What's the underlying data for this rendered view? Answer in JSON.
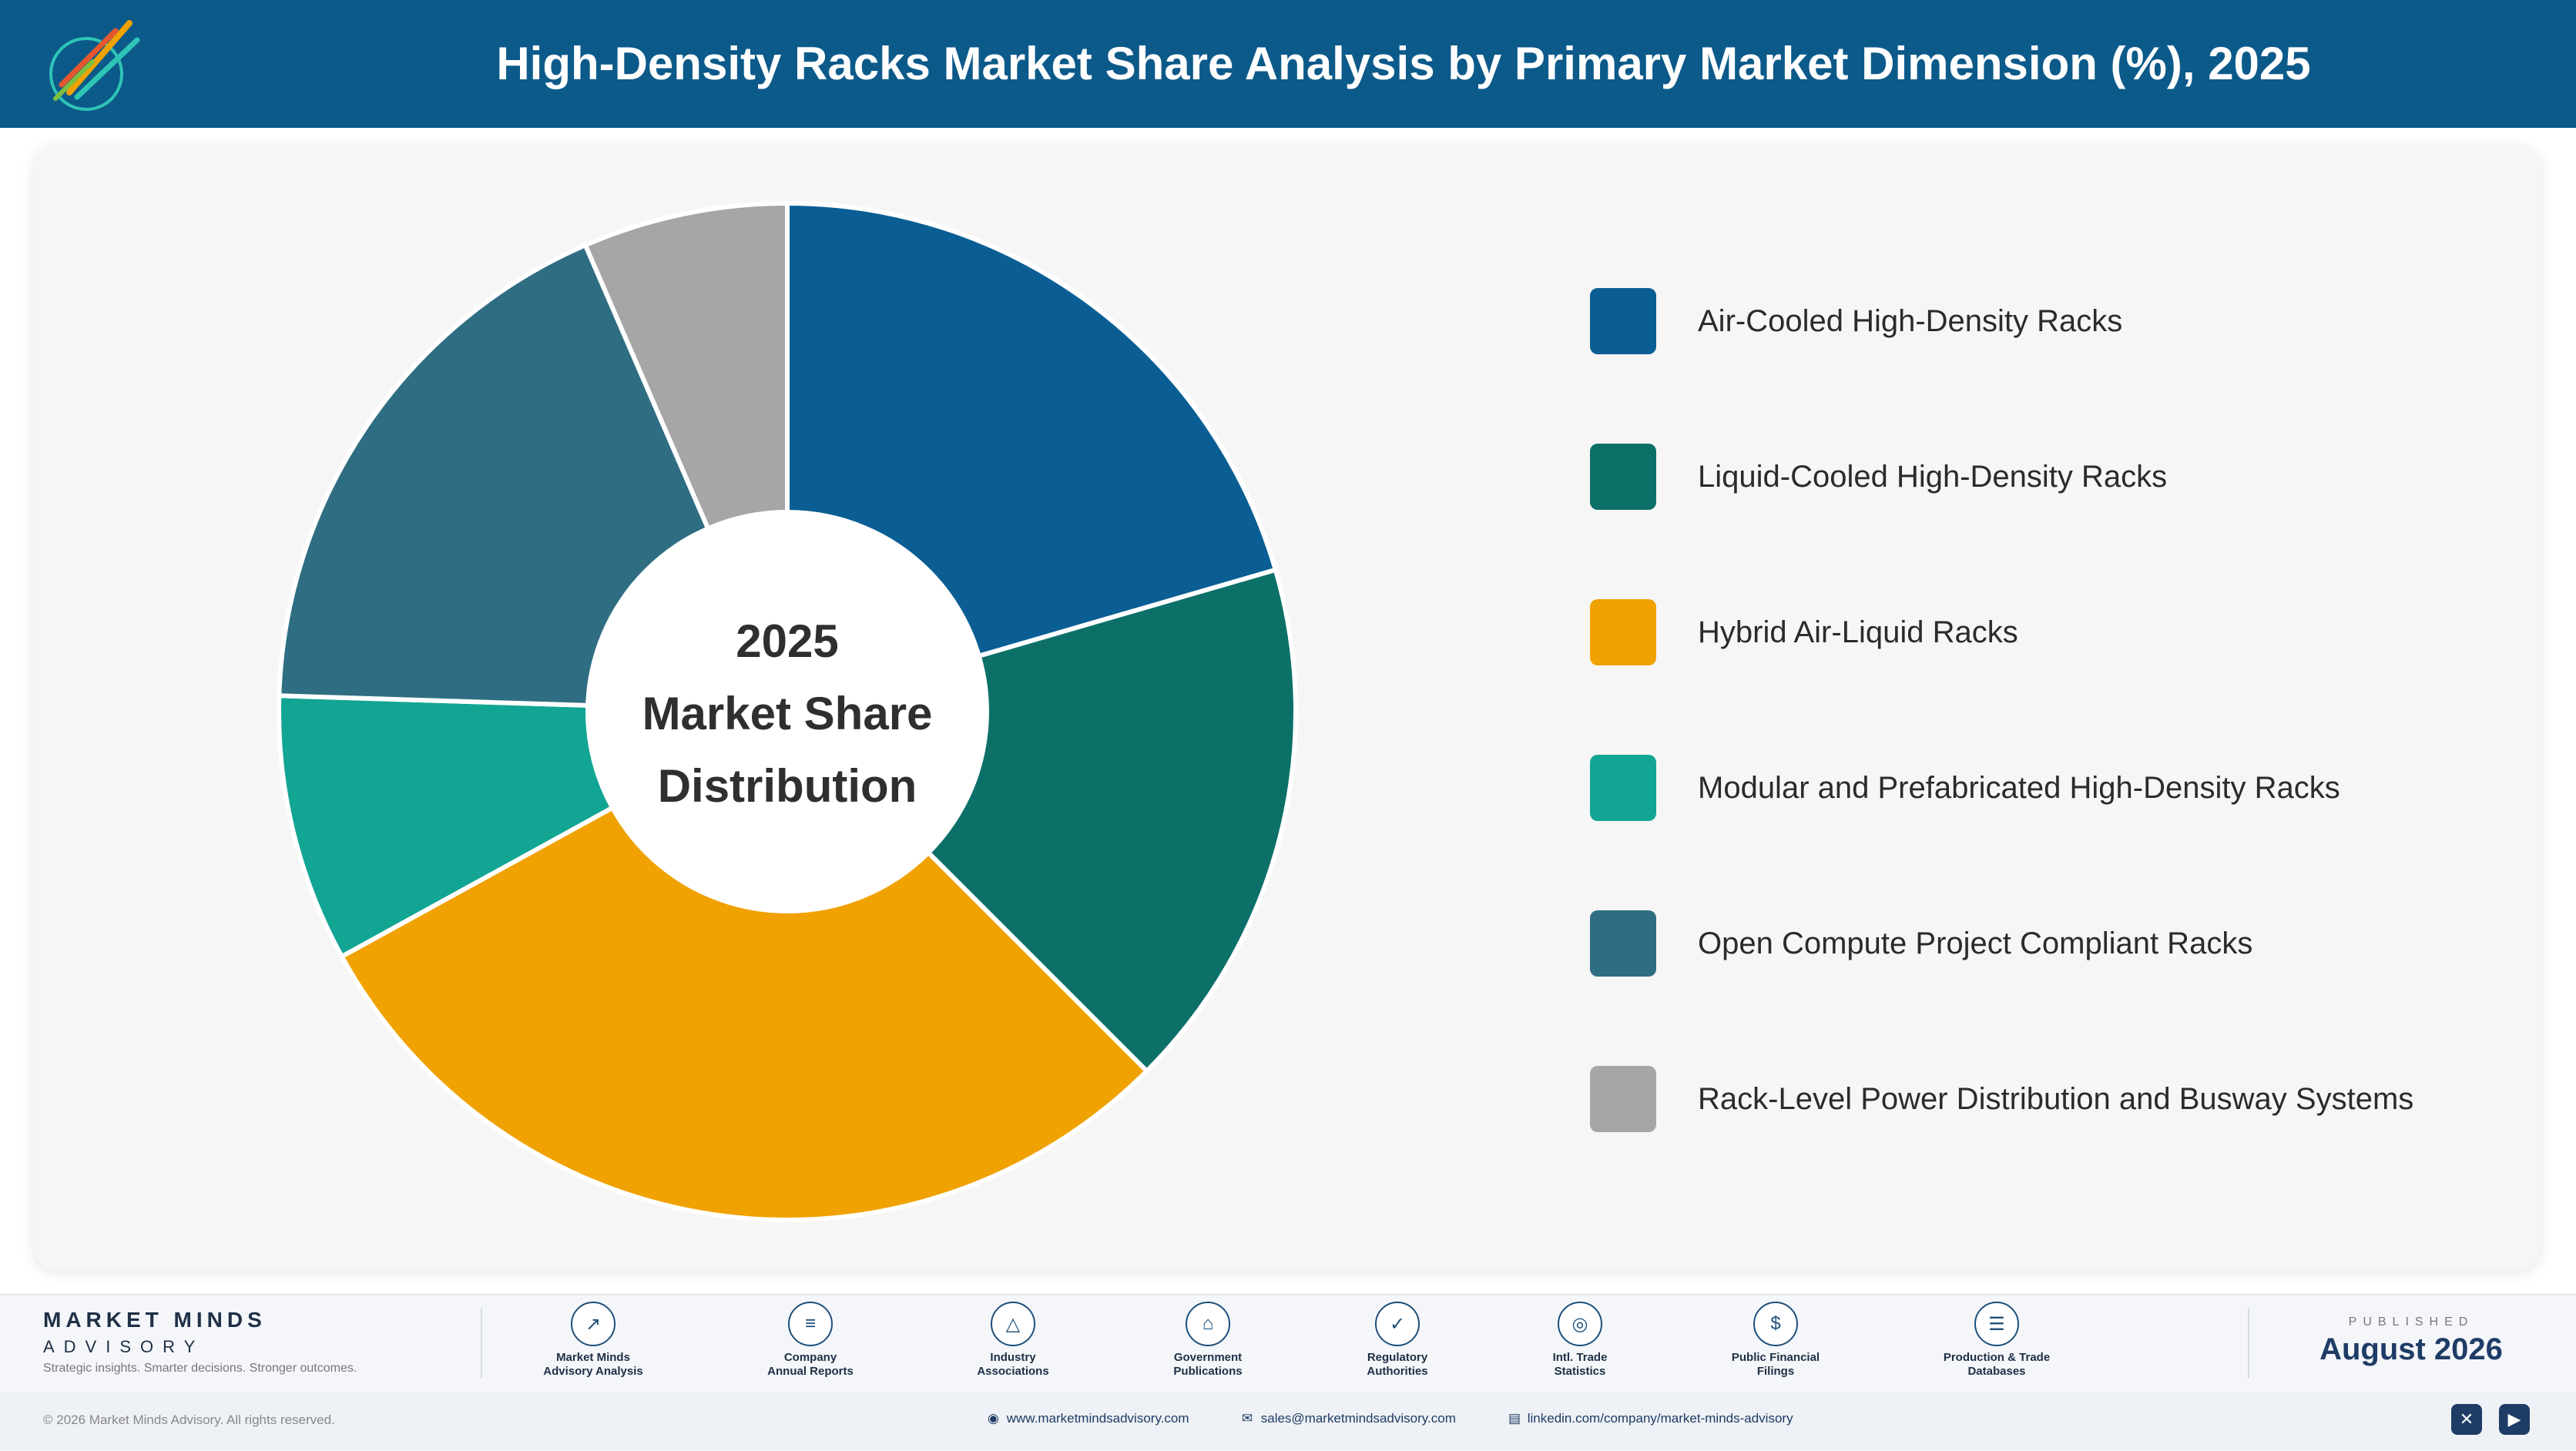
{
  "header": {
    "title": "High-Density Racks Market Share Analysis by Primary Market Dimension (%), 2025",
    "background_color": "#0c5a8a",
    "logo_text": "Market Minds Advisory"
  },
  "chart_data": {
    "type": "pie",
    "title": "High-Density Racks Market Share Analysis by Primary Market Dimension (%), 2025",
    "center_label": [
      "2025",
      "Market Share",
      "Distribution"
    ],
    "categories": [
      "Air-Cooled High-Density Racks",
      "Liquid-Cooled High-Density Racks",
      "Hybrid Air-Liquid Racks",
      "Modular and Prefabricated High-Density Racks",
      "Open Compute Project Compliant Racks",
      "Rack-Level Power Distribution and Busway Systems"
    ],
    "values": [
      20.5,
      17.0,
      29.5,
      8.5,
      18.0,
      6.5
    ],
    "colors": [
      "#0a5e94",
      "#0c7068",
      "#f0a202",
      "#12a593",
      "#2f6e82",
      "#a6a6a6"
    ],
    "donut": true,
    "legend_position": "right"
  },
  "footer": {
    "brand_name": "MARKET MINDS",
    "brand_sub": "ADVISORY",
    "brand_tagline": "Strategic insights. Smarter decisions. Stronger outcomes.",
    "sources": [
      {
        "label": "Market Minds\nAdvisory Analysis",
        "icon": "trend-chart-icon",
        "glyph": "↗"
      },
      {
        "label": "Company\nAnnual Reports",
        "icon": "document-icon",
        "glyph": "≡"
      },
      {
        "label": "Industry\nAssociations",
        "icon": "network-icon",
        "glyph": "△"
      },
      {
        "label": "Government\nPublications",
        "icon": "government-building-icon",
        "glyph": "⌂"
      },
      {
        "label": "Regulatory\nAuthorities",
        "icon": "shield-icon",
        "glyph": "✓"
      },
      {
        "label": "Intl. Trade\nStatistics",
        "icon": "globe-icon",
        "glyph": "◎"
      },
      {
        "label": "Public Financial\nFilings",
        "icon": "coin-icon",
        "glyph": "$"
      },
      {
        "label": "Production & Trade\nDatabases",
        "icon": "database-icon",
        "glyph": "☰"
      }
    ],
    "published_label": "PUBLISHED",
    "published_date": "August 2026",
    "copyright": "© 2026 Market Minds Advisory. All rights reserved.",
    "website": "www.marketmindsadvisory.com",
    "email": "sales@marketmindsadvisory.com",
    "linkedin": "linkedin.com/company/market-minds-advisory"
  }
}
